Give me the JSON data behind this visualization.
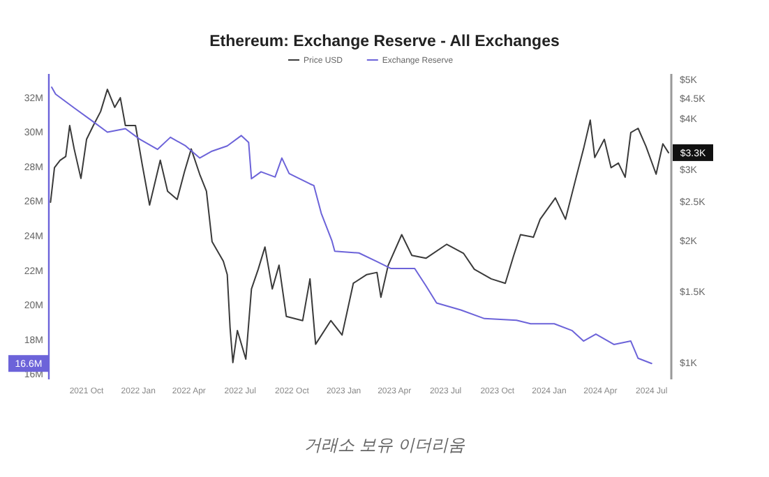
{
  "chart_data": {
    "type": "line",
    "title": "Ethereum: Exchange Reserve - All Exchanges",
    "legend": "top",
    "log": "y2",
    "xlim": [
      "2021-07-26",
      "2024-08-05"
    ],
    "ylim": [
      15.68,
      33.37
    ],
    "y2lim": [
      909,
      5164
    ],
    "xticks": [
      {
        "value": "2021-10-01",
        "label": "2021 Oct"
      },
      {
        "value": "2022-01-01",
        "label": "2022 Jan"
      },
      {
        "value": "2022-04-01",
        "label": "2022 Apr"
      },
      {
        "value": "2022-07-01",
        "label": "2022 Jul"
      },
      {
        "value": "2022-10-01",
        "label": "2022 Oct"
      },
      {
        "value": "2023-01-01",
        "label": "2023 Jan"
      },
      {
        "value": "2023-04-01",
        "label": "2023 Apr"
      },
      {
        "value": "2023-07-01",
        "label": "2023 Jul"
      },
      {
        "value": "2023-10-01",
        "label": "2023 Oct"
      },
      {
        "value": "2024-01-01",
        "label": "2024 Jan"
      },
      {
        "value": "2024-04-01",
        "label": "2024 Apr"
      },
      {
        "value": "2024-07-01",
        "label": "2024 Jul"
      }
    ],
    "yticks": [
      {
        "value": 16,
        "label": "16M"
      },
      {
        "value": 18,
        "label": "18M"
      },
      {
        "value": 20,
        "label": "20M"
      },
      {
        "value": 22,
        "label": "22M"
      },
      {
        "value": 24,
        "label": "24M"
      },
      {
        "value": 26,
        "label": "26M"
      },
      {
        "value": 28,
        "label": "28M"
      },
      {
        "value": 30,
        "label": "30M"
      },
      {
        "value": 32,
        "label": "32M"
      }
    ],
    "y2ticks": [
      {
        "value": 1000,
        "label": "$1K"
      },
      {
        "value": 1500,
        "label": "$1.5K"
      },
      {
        "value": 2000,
        "label": "$2K"
      },
      {
        "value": 2500,
        "label": "$2.5K"
      },
      {
        "value": 3000,
        "label": "$3K"
      },
      {
        "value": 4000,
        "label": "$4K"
      },
      {
        "value": 4500,
        "label": "$4.5K"
      },
      {
        "value": 5000,
        "label": "$5K"
      }
    ],
    "series": [
      {
        "name": "Price USD",
        "color": "#3a3a3a",
        "axis": "y2",
        "x": [
          "2021-07-29",
          "2021-08-05",
          "2021-08-15",
          "2021-08-25",
          "2021-09-01",
          "2021-09-09",
          "2021-09-21",
          "2021-10-01",
          "2021-10-13",
          "2021-10-26",
          "2021-11-07",
          "2021-11-20",
          "2021-11-30",
          "2021-12-09",
          "2021-12-27",
          "2022-01-08",
          "2022-01-21",
          "2022-02-09",
          "2022-02-22",
          "2022-03-11",
          "2022-03-24",
          "2022-04-05",
          "2022-04-20",
          "2022-05-02",
          "2022-05-12",
          "2022-06-01",
          "2022-06-08",
          "2022-06-13",
          "2022-06-18",
          "2022-06-26",
          "2022-07-11",
          "2022-07-21",
          "2022-08-02",
          "2022-08-14",
          "2022-08-27",
          "2022-09-08",
          "2022-09-21",
          "2022-10-20",
          "2022-11-02",
          "2022-11-12",
          "2022-12-09",
          "2022-12-29",
          "2023-01-18",
          "2023-02-11",
          "2023-03-01",
          "2023-03-08",
          "2023-03-21",
          "2023-04-14",
          "2023-05-02",
          "2023-05-27",
          "2023-07-03",
          "2023-08-02",
          "2023-08-21",
          "2023-09-20",
          "2023-10-15",
          "2023-10-30",
          "2023-11-11",
          "2023-12-04",
          "2023-12-16",
          "2024-01-12",
          "2024-01-30",
          "2024-02-18",
          "2024-03-02",
          "2024-03-14",
          "2024-03-22",
          "2024-04-08",
          "2024-04-20",
          "2024-05-03",
          "2024-05-15",
          "2024-05-25",
          "2024-06-07",
          "2024-06-21",
          "2024-07-09",
          "2024-07-21",
          "2024-07-31"
        ],
        "values": [
          2490,
          3030,
          3160,
          3230,
          3850,
          3370,
          2850,
          3560,
          3850,
          4170,
          4730,
          4270,
          4510,
          3850,
          3850,
          3080,
          2450,
          3160,
          2650,
          2530,
          2960,
          3370,
          2920,
          2650,
          1990,
          1780,
          1650,
          1220,
          1000,
          1200,
          1020,
          1520,
          1700,
          1930,
          1520,
          1740,
          1300,
          1270,
          1610,
          1110,
          1270,
          1170,
          1570,
          1650,
          1670,
          1450,
          1740,
          2070,
          1840,
          1810,
          1960,
          1860,
          1700,
          1610,
          1570,
          1840,
          2070,
          2040,
          2260,
          2550,
          2260,
          2870,
          3370,
          3970,
          3210,
          3560,
          3030,
          3110,
          2870,
          3700,
          3790,
          3420,
          2920,
          3470,
          3300
        ]
      },
      {
        "name": "Exchange Reserve",
        "color": "#6c63d9",
        "x": [
          "2021-07-31",
          "2021-08-07",
          "2021-09-09",
          "2021-10-13",
          "2021-11-07",
          "2021-12-09",
          "2022-01-03",
          "2022-02-04",
          "2022-02-27",
          "2022-03-26",
          "2022-04-20",
          "2022-05-12",
          "2022-06-08",
          "2022-07-03",
          "2022-07-16",
          "2022-07-21",
          "2022-08-07",
          "2022-09-01",
          "2022-09-13",
          "2022-09-26",
          "2022-11-02",
          "2022-11-09",
          "2022-11-22",
          "2022-12-11",
          "2022-12-16",
          "2023-01-28",
          "2023-03-01",
          "2023-03-26",
          "2023-05-07",
          "2023-05-27",
          "2023-06-15",
          "2023-07-28",
          "2023-09-08",
          "2023-11-04",
          "2023-11-29",
          "2024-01-10",
          "2024-02-11",
          "2024-03-02",
          "2024-03-24",
          "2024-04-25",
          "2024-05-25",
          "2024-06-07",
          "2024-07-01"
        ],
        "values": [
          32.6,
          32.2,
          31.4,
          30.6,
          30.0,
          30.2,
          29.6,
          29.0,
          29.7,
          29.2,
          28.5,
          28.9,
          29.2,
          29.8,
          29.4,
          27.3,
          27.7,
          27.4,
          28.5,
          27.6,
          27.0,
          26.9,
          25.3,
          23.7,
          23.1,
          23.0,
          22.5,
          22.1,
          22.1,
          21.1,
          20.1,
          19.7,
          19.2,
          19.1,
          18.9,
          18.9,
          18.5,
          17.9,
          18.3,
          17.7,
          17.9,
          16.9,
          16.6
        ]
      }
    ],
    "annotations": [
      "거래소 보유 이더리움",
      "16.6M",
      "$3.3K"
    ]
  }
}
